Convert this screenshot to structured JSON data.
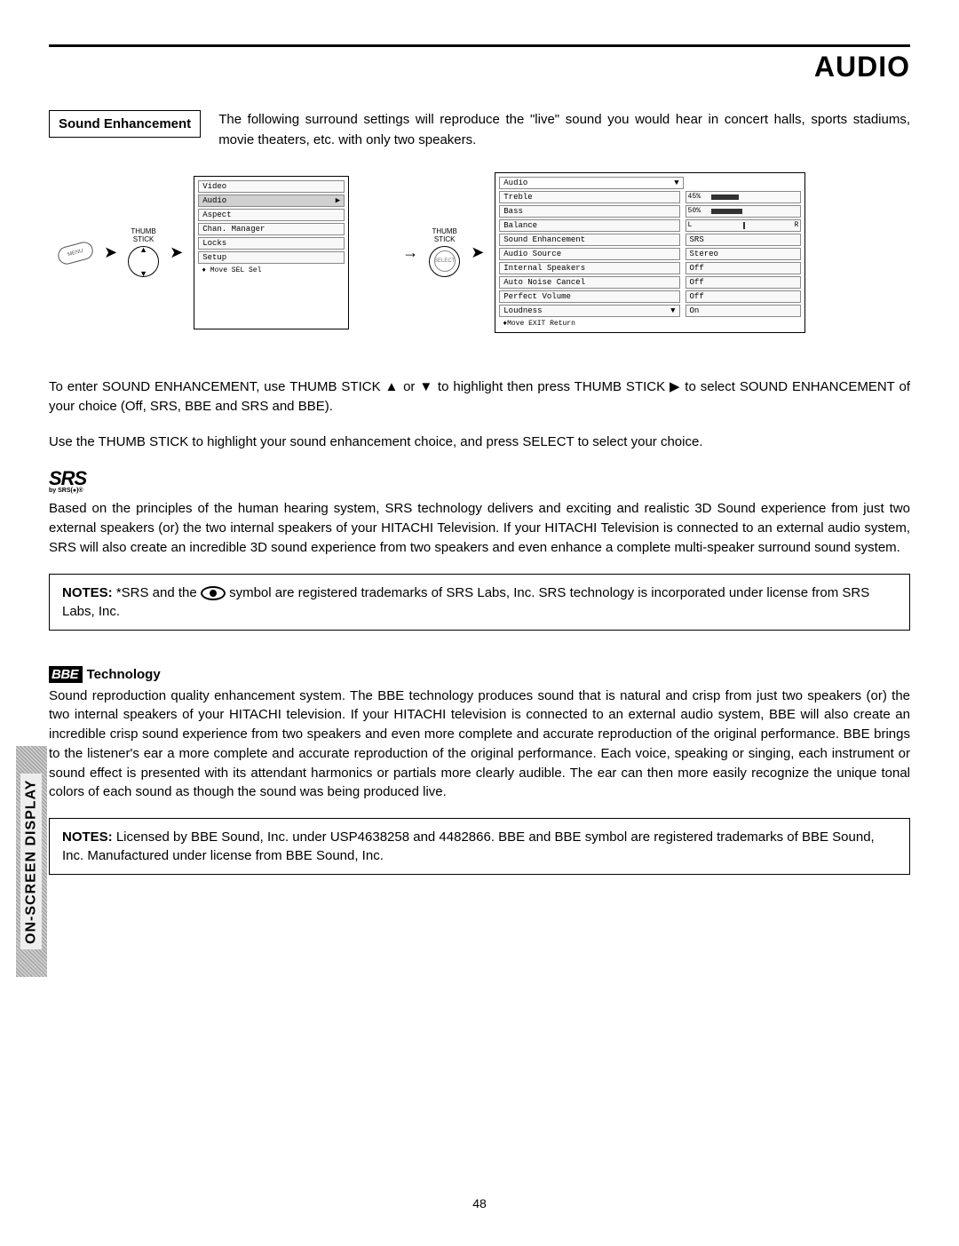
{
  "page": {
    "title": "AUDIO",
    "number": "48"
  },
  "section": {
    "label": "Sound Enhancement",
    "description": "The following surround settings will reproduce the \"live\" sound you would hear in concert halls, sports stadiums, movie theaters, etc. with only two speakers."
  },
  "diagram": {
    "thumb_label": "THUMB\nSTICK",
    "main_menu": {
      "items": [
        "Video",
        "Audio",
        "Aspect",
        "Chan. Manager",
        "Locks",
        "Setup"
      ],
      "highlighted_index": 1,
      "footer": "♦ Move SEL Sel"
    },
    "audio_menu": {
      "header": "Audio",
      "rows": [
        {
          "label": "Treble",
          "value": "45%",
          "bar_pct": 45
        },
        {
          "label": "Bass",
          "value": "50%",
          "bar_pct": 50
        },
        {
          "label": "Balance",
          "value_left": "L",
          "value_right": "R",
          "balance": true
        },
        {
          "label": "Sound Enhancement",
          "value": "SRS"
        },
        {
          "label": "Audio Source",
          "value": "Stereo"
        },
        {
          "label": "Internal Speakers",
          "value": "Off"
        },
        {
          "label": "Auto Noise Cancel",
          "value": "Off"
        },
        {
          "label": "Perfect Volume",
          "value": "Off"
        },
        {
          "label": "Loudness",
          "value": "On"
        }
      ],
      "footer": "♦Move    EXIT Return"
    }
  },
  "body": {
    "para1": "To enter SOUND ENHANCEMENT, use THUMB STICK ▲ or ▼ to highlight then press THUMB STICK ▶ to select SOUND ENHANCEMENT of your choice (Off, SRS, BBE and SRS and BBE).",
    "para2": "Use the THUMB STICK to highlight your sound enhancement choice, and press SELECT to select your choice."
  },
  "srs": {
    "logo_text": "SRS",
    "logo_sub": "by SRS(●)®",
    "text": "Based on the principles of the human hearing system, SRS technology delivers and exciting and realistic 3D Sound experience from just two external speakers (or) the two internal speakers of your HITACHI Television.  If your HITACHI Television is connected to an external audio system, SRS will also create an incredible 3D sound experience from two speakers and even enhance a complete multi-speaker surround sound system.",
    "notes_label": "NOTES:",
    "notes_text_pre": " *SRS and the ",
    "notes_text_post": " symbol are registered trademarks of SRS Labs, Inc. SRS technology is incorporated under license from SRS Labs, Inc."
  },
  "bbe": {
    "logo_text": "BBE",
    "title": " Technology",
    "text": "Sound reproduction quality enhancement system.  The BBE technology produces sound that is natural and crisp from just two speakers (or) the two internal speakers of your HITACHI television. If your HITACHI television is connected to an external audio system, BBE will also create an incredible crisp sound experience from two speakers and even more complete and accurate reproduction of the original performance.  BBE brings to the listener's ear a more complete and accurate reproduction of the original performance.  Each voice, speaking or singing, each instrument or sound effect is presented with its attendant harmonics or partials more clearly audible.  The ear can then more easily recognize the unique tonal colors of each sound as though the sound was being produced live.",
    "notes_label": "NOTES:",
    "notes_text": "  Licensed by BBE Sound, Inc. under USP4638258 and 4482866.  BBE and BBE symbol are registered trademarks of BBE Sound, Inc.  Manufactured under license from BBE Sound, Inc."
  },
  "side_tab": "ON-SCREEN DISPLAY",
  "colors": {
    "text": "#000000",
    "border": "#000000",
    "menu_item_bg": "#f8f8f8",
    "highlight_bg": "#d0d0d0"
  }
}
